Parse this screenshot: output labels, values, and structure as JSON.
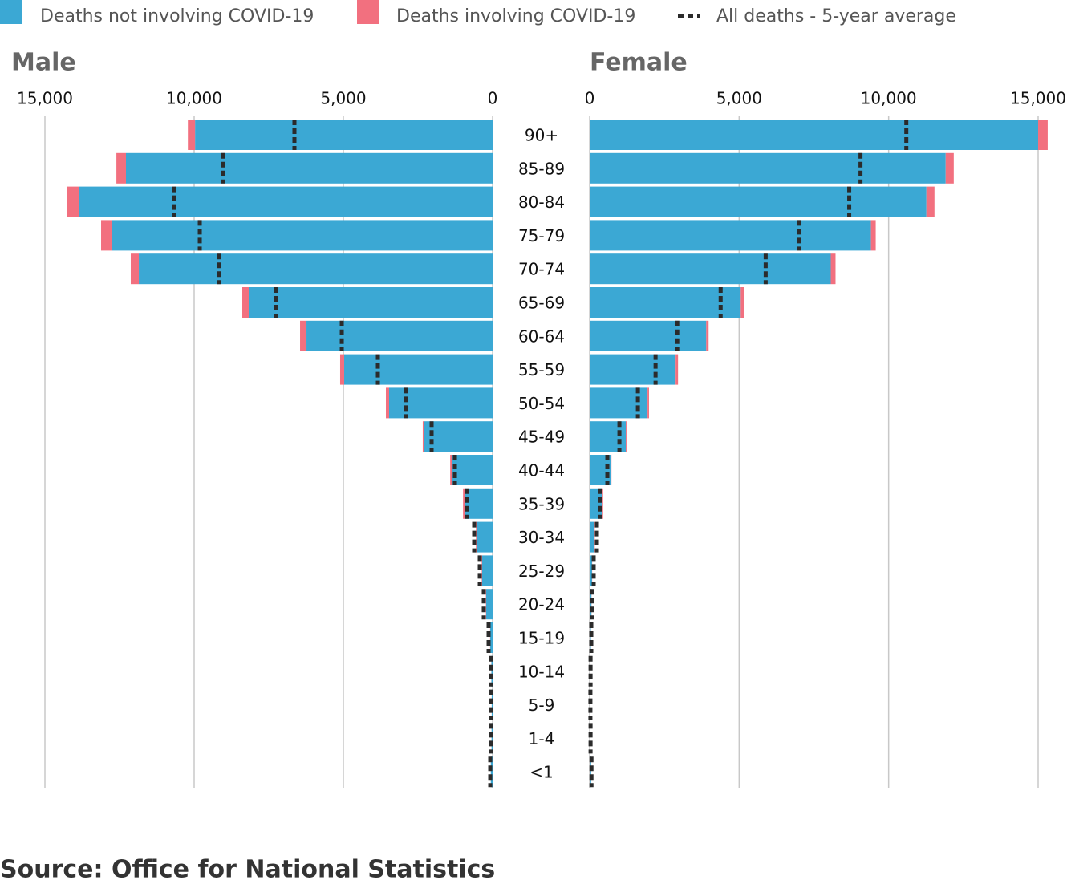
{
  "chart_data": {
    "type": "pyramid",
    "categories": [
      "90+",
      "85-89",
      "80-84",
      "75-79",
      "70-74",
      "65-69",
      "60-64",
      "55-59",
      "50-54",
      "45-49",
      "40-44",
      "35-39",
      "30-34",
      "25-29",
      "20-24",
      "15-19",
      "10-14",
      "5-9",
      "1-4",
      "<1"
    ],
    "panels": [
      {
        "title": "Male",
        "xlim": [
          15000,
          0
        ],
        "xticks": [
          {
            "value": 15000,
            "label": "15,000"
          },
          {
            "value": 10000,
            "label": "10,000"
          },
          {
            "value": 5000,
            "label": "5,000"
          },
          0
        ]
      },
      {
        "title": "Female",
        "xlim": [
          0,
          15000
        ],
        "xticks": [
          0,
          {
            "value": 5000,
            "label": "5,000"
          },
          {
            "value": 10000,
            "label": "10,000"
          },
          {
            "value": 15000,
            "label": "15,000"
          }
        ]
      }
    ],
    "series": [
      {
        "name": "Deaths not involving COVID-19",
        "color": "#3ba8d4",
        "mark": "bar",
        "values": [
          [
            9970,
            12285,
            13870,
            12768,
            11854,
            8172,
            6236,
            4973,
            3468,
            2285,
            1371,
            941,
            538,
            350,
            215,
            80,
            40,
            30,
            35,
            60
          ],
          [
            15000,
            11908,
            11263,
            9408,
            8064,
            5053,
            3898,
            2876,
            1935,
            1210,
            699,
            430,
            160,
            80,
            60,
            40,
            25,
            20,
            25,
            50
          ]
        ]
      },
      {
        "name": "Deaths involving COVID-19",
        "color": "#f2707f",
        "mark": "bar",
        "values": [
          [
            240,
            320,
            380,
            350,
            270,
            215,
            215,
            135,
            107,
            55,
            50,
            50,
            20,
            15,
            10,
            5,
            2,
            1,
            1,
            1
          ],
          [
            320,
            270,
            270,
            160,
            160,
            100,
            80,
            80,
            50,
            40,
            30,
            20,
            10,
            5,
            3,
            2,
            1,
            1,
            1,
            1
          ]
        ]
      },
      {
        "name": "All deaths - 5-year average",
        "color": "#2b2b2b",
        "mark": "dash",
        "values": [
          [
            6640,
            9032,
            10671,
            9811,
            9166,
            7258,
            5053,
            3844,
            2903,
            2043,
            1263,
            860,
            618,
            430,
            296,
            134,
            54,
            40,
            50,
            80
          ],
          [
            10591,
            9059,
            8682,
            7016,
            5887,
            4381,
            2930,
            2204,
            1613,
            995,
            591,
            349,
            242,
            134,
            80,
            54,
            30,
            25,
            30,
            60
          ]
        ]
      }
    ],
    "grid": true,
    "source": "Source: Office for National Statistics"
  }
}
